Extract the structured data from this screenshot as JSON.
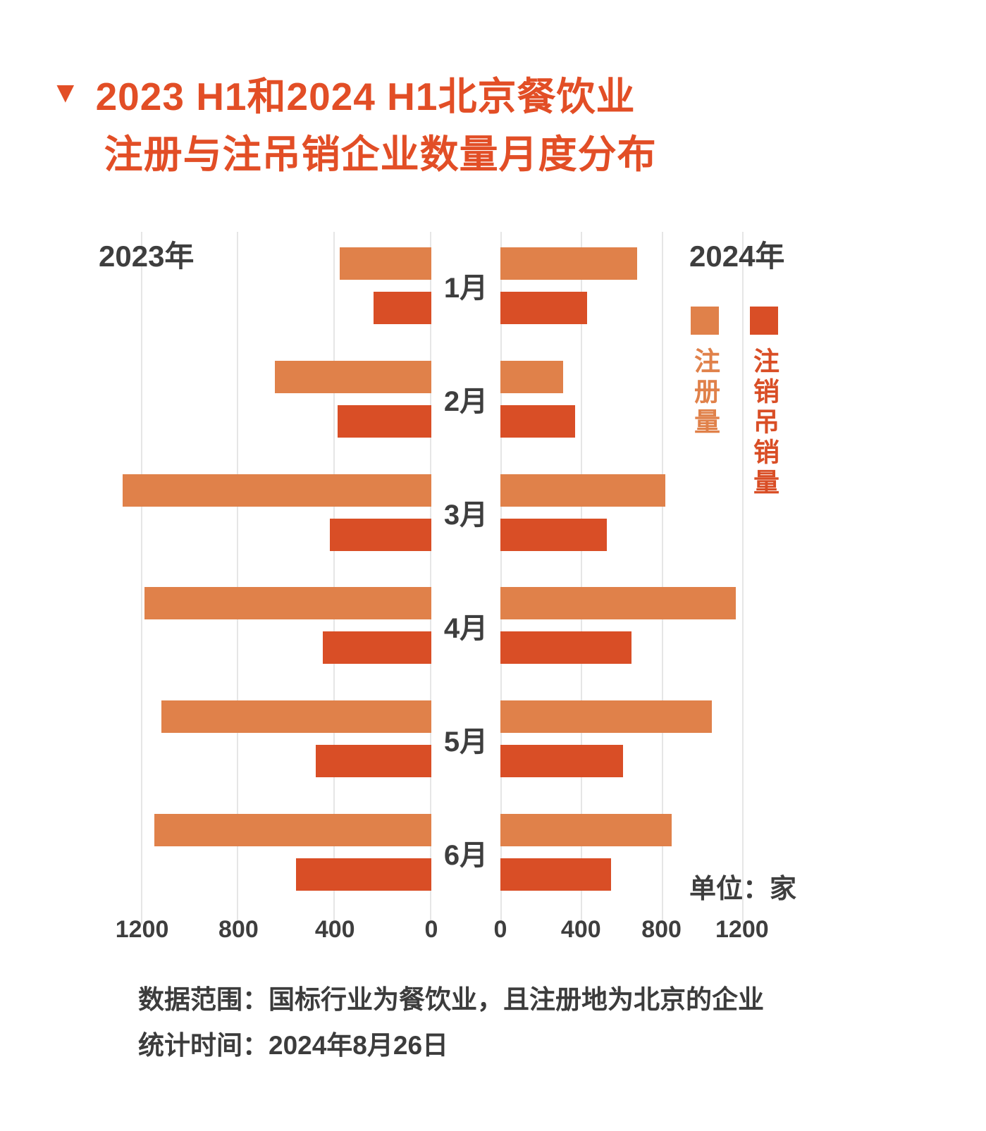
{
  "title": {
    "marker": "▼",
    "line1": "2023 H1和2024 H1北京餐饮业",
    "line2": "注册与注吊销企业数量月度分布"
  },
  "colors": {
    "registration": "#E0814A",
    "deregistration": "#D94E26",
    "title": "#E24E26",
    "text": "#3E3E3E",
    "gridline": "#E6E6E6"
  },
  "panel_labels": {
    "left": "2023年",
    "right": "2024年"
  },
  "legend": [
    {
      "label": "注册量",
      "color": "#E0814A"
    },
    {
      "label": "注销吊销量",
      "color": "#D94E26"
    }
  ],
  "unit_label": "单位：家",
  "footnotes": [
    "数据范围：国标行业为餐饮业，且注册地为北京的企业",
    "统计时间：2024年8月26日"
  ],
  "chart_data": {
    "type": "bar",
    "orientation": "horizontal-diverging-pyramid",
    "title": "2023 H1和2024 H1北京餐饮业注册与注吊销企业数量月度分布",
    "unit": "家",
    "grid": true,
    "legend_position": "right-top",
    "categories": [
      "1月",
      "2月",
      "3月",
      "4月",
      "5月",
      "6月"
    ],
    "series": [
      {
        "name": "2023年注册量",
        "panel": "2023",
        "values": [
          380,
          650,
          1280,
          1190,
          1120,
          1150
        ]
      },
      {
        "name": "2023年注销吊销量",
        "panel": "2023",
        "values": [
          240,
          390,
          420,
          450,
          480,
          560
        ]
      },
      {
        "name": "2024年注册量",
        "panel": "2024",
        "values": [
          680,
          310,
          820,
          1170,
          1050,
          850
        ]
      },
      {
        "name": "2024年注销吊销量",
        "panel": "2024",
        "values": [
          430,
          370,
          530,
          650,
          610,
          550
        ]
      }
    ],
    "axis": {
      "ticks_left": [
        1200,
        800,
        400,
        0
      ],
      "ticks_right": [
        0,
        400,
        800,
        1200
      ],
      "xlim_left": [
        0,
        1380
      ],
      "xlim_right": [
        0,
        1645
      ]
    }
  }
}
